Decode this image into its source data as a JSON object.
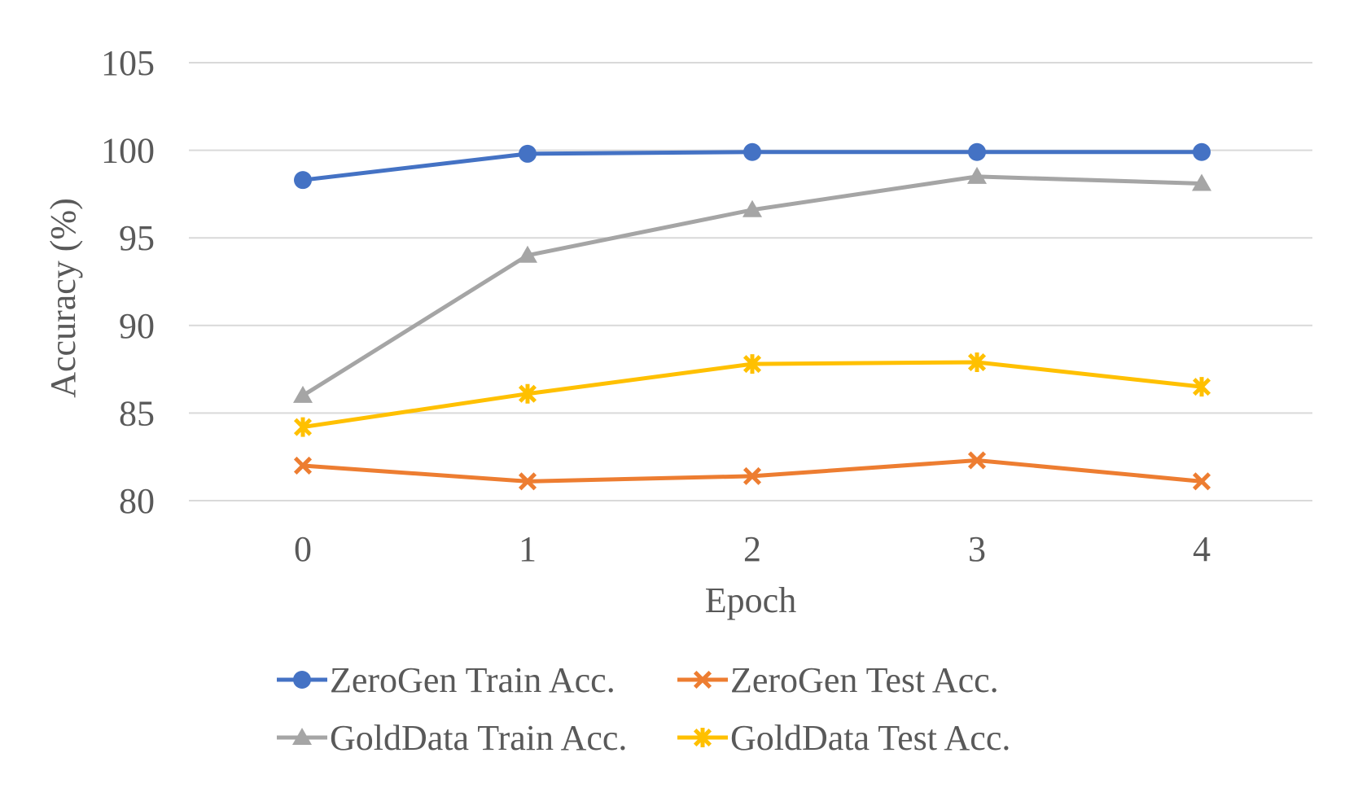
{
  "chart_data": {
    "type": "line",
    "title": "",
    "xlabel": "Epoch",
    "ylabel": "Accuracy (%)",
    "x": [
      0,
      1,
      2,
      3,
      4
    ],
    "x_tick_labels": [
      "0",
      "1",
      "2",
      "3",
      "4"
    ],
    "ylim": [
      80,
      105
    ],
    "y_ticks": [
      80,
      85,
      90,
      95,
      100,
      105
    ],
    "y_tick_labels": [
      "80",
      "85",
      "90",
      "95",
      "100",
      "105"
    ],
    "grid": true,
    "legend_position": "bottom",
    "series": [
      {
        "name": "ZeroGen Train Acc.",
        "color": "#4472C4",
        "marker": "circle",
        "values": [
          98.3,
          99.8,
          99.9,
          99.9,
          99.9
        ]
      },
      {
        "name": "ZeroGen Test Acc.",
        "color": "#ED7D31",
        "marker": "x",
        "values": [
          82.0,
          81.1,
          81.4,
          82.3,
          81.1
        ]
      },
      {
        "name": "GoldData Train Acc.",
        "color": "#A5A5A5",
        "marker": "triangle",
        "values": [
          86.0,
          94.0,
          96.6,
          98.5,
          98.1
        ]
      },
      {
        "name": "GoldData Test Acc.",
        "color": "#FFC000",
        "marker": "star",
        "values": [
          84.2,
          86.1,
          87.8,
          87.9,
          86.5
        ]
      }
    ]
  }
}
